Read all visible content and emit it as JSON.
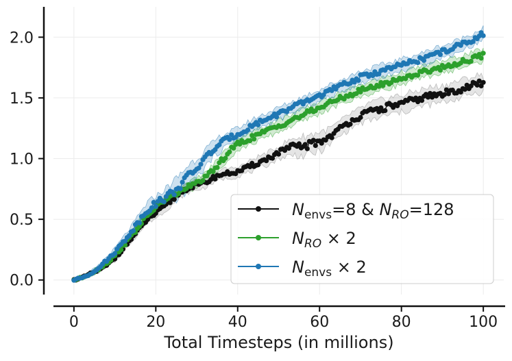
{
  "chart_data": {
    "type": "line",
    "title": "",
    "xlabel": "Total Timesteps (in millions)",
    "ylabel": "",
    "xlim": [
      -5,
      105
    ],
    "ylim": [
      -0.12,
      2.25
    ],
    "xticks": [
      0,
      20,
      40,
      60,
      80,
      100
    ],
    "yticks": [
      0.0,
      0.5,
      1.0,
      1.5,
      2.0
    ],
    "xtick_labels": [
      "0",
      "20",
      "40",
      "60",
      "80",
      "100"
    ],
    "ytick_labels": [
      "0.0",
      "0.5",
      "1.0",
      "1.5",
      "2.0"
    ],
    "grid": true,
    "legend_position": "lower-right",
    "x": [
      0,
      2,
      4,
      6,
      8,
      10,
      12,
      14,
      16,
      18,
      20,
      22,
      24,
      26,
      28,
      30,
      32,
      34,
      36,
      38,
      40,
      42,
      44,
      46,
      48,
      50,
      52,
      54,
      56,
      58,
      60,
      62,
      64,
      66,
      68,
      70,
      72,
      74,
      76,
      78,
      80,
      82,
      84,
      86,
      88,
      90,
      92,
      94,
      96,
      98,
      100
    ],
    "series": [
      {
        "name": "N_envs=8 & N_RO=128",
        "legend": {
          "parts": [
            {
              "t": "N",
              "style": "italic"
            },
            {
              "t": "envs",
              "style": "sub"
            },
            {
              "t": "=8 & ",
              "style": "normal"
            },
            {
              "t": "N",
              "style": "italic"
            },
            {
              "t": "RO",
              "style": "sub-italic"
            },
            {
              "t": "=128",
              "style": "normal"
            }
          ]
        },
        "color": "#111111",
        "band_color": "#888888",
        "values": [
          0.0,
          0.02,
          0.05,
          0.08,
          0.12,
          0.18,
          0.26,
          0.34,
          0.42,
          0.5,
          0.55,
          0.6,
          0.66,
          0.72,
          0.76,
          0.78,
          0.8,
          0.84,
          0.87,
          0.88,
          0.89,
          0.92,
          0.95,
          0.98,
          1.01,
          1.05,
          1.08,
          1.1,
          1.1,
          1.12,
          1.14,
          1.17,
          1.22,
          1.27,
          1.32,
          1.35,
          1.38,
          1.4,
          1.42,
          1.44,
          1.45,
          1.47,
          1.49,
          1.51,
          1.52,
          1.53,
          1.55,
          1.57,
          1.59,
          1.61,
          1.62
        ],
        "errors": [
          0.0,
          0.01,
          0.02,
          0.02,
          0.02,
          0.03,
          0.03,
          0.03,
          0.03,
          0.03,
          0.04,
          0.04,
          0.04,
          0.04,
          0.04,
          0.04,
          0.04,
          0.04,
          0.04,
          0.04,
          0.04,
          0.04,
          0.05,
          0.05,
          0.05,
          0.05,
          0.06,
          0.07,
          0.08,
          0.08,
          0.08,
          0.07,
          0.06,
          0.06,
          0.06,
          0.06,
          0.07,
          0.07,
          0.07,
          0.07,
          0.07,
          0.07,
          0.07,
          0.07,
          0.07,
          0.07,
          0.07,
          0.07,
          0.07,
          0.07,
          0.07
        ]
      },
      {
        "name": "N_RO x 2",
        "legend": {
          "parts": [
            {
              "t": "N",
              "style": "italic"
            },
            {
              "t": "RO",
              "style": "sub-italic"
            },
            {
              "t": " × 2",
              "style": "normal"
            }
          ]
        },
        "color": "#2ca02c",
        "band_color": "#2ca02c",
        "values": [
          0.0,
          0.02,
          0.05,
          0.09,
          0.14,
          0.2,
          0.28,
          0.36,
          0.45,
          0.53,
          0.6,
          0.65,
          0.69,
          0.73,
          0.77,
          0.8,
          0.84,
          0.9,
          0.98,
          1.06,
          1.12,
          1.15,
          1.18,
          1.21,
          1.24,
          1.27,
          1.3,
          1.33,
          1.36,
          1.39,
          1.42,
          1.45,
          1.48,
          1.51,
          1.53,
          1.56,
          1.58,
          1.6,
          1.62,
          1.64,
          1.66,
          1.68,
          1.7,
          1.72,
          1.74,
          1.75,
          1.77,
          1.79,
          1.81,
          1.83,
          1.85
        ],
        "errors": [
          0.0,
          0.01,
          0.02,
          0.02,
          0.03,
          0.03,
          0.03,
          0.04,
          0.04,
          0.04,
          0.04,
          0.04,
          0.04,
          0.04,
          0.04,
          0.04,
          0.04,
          0.05,
          0.05,
          0.05,
          0.05,
          0.05,
          0.05,
          0.05,
          0.05,
          0.05,
          0.05,
          0.05,
          0.05,
          0.05,
          0.05,
          0.05,
          0.05,
          0.05,
          0.05,
          0.05,
          0.05,
          0.05,
          0.05,
          0.05,
          0.05,
          0.05,
          0.05,
          0.05,
          0.05,
          0.05,
          0.05,
          0.05,
          0.05,
          0.05,
          0.05
        ]
      },
      {
        "name": "N_envs x 2",
        "legend": {
          "parts": [
            {
              "t": "N",
              "style": "italic"
            },
            {
              "t": "envs",
              "style": "sub"
            },
            {
              "t": " × 2",
              "style": "normal"
            }
          ]
        },
        "color": "#1f77b4",
        "band_color": "#1f77b4",
        "values": [
          0.0,
          0.02,
          0.05,
          0.1,
          0.16,
          0.23,
          0.31,
          0.4,
          0.49,
          0.58,
          0.63,
          0.67,
          0.72,
          0.78,
          0.85,
          0.92,
          1.0,
          1.07,
          1.13,
          1.17,
          1.2,
          1.24,
          1.28,
          1.31,
          1.34,
          1.37,
          1.4,
          1.43,
          1.46,
          1.49,
          1.52,
          1.55,
          1.58,
          1.61,
          1.64,
          1.67,
          1.69,
          1.71,
          1.73,
          1.75,
          1.77,
          1.79,
          1.81,
          1.83,
          1.86,
          1.88,
          1.9,
          1.93,
          1.96,
          1.99,
          2.03
        ],
        "errors": [
          0.0,
          0.01,
          0.02,
          0.02,
          0.03,
          0.03,
          0.04,
          0.04,
          0.05,
          0.06,
          0.06,
          0.07,
          0.08,
          0.09,
          0.1,
          0.08,
          0.07,
          0.06,
          0.06,
          0.05,
          0.05,
          0.05,
          0.05,
          0.05,
          0.05,
          0.05,
          0.05,
          0.05,
          0.05,
          0.05,
          0.05,
          0.05,
          0.05,
          0.05,
          0.05,
          0.05,
          0.05,
          0.05,
          0.05,
          0.05,
          0.05,
          0.05,
          0.05,
          0.05,
          0.05,
          0.05,
          0.05,
          0.05,
          0.05,
          0.05,
          0.05
        ]
      }
    ]
  }
}
